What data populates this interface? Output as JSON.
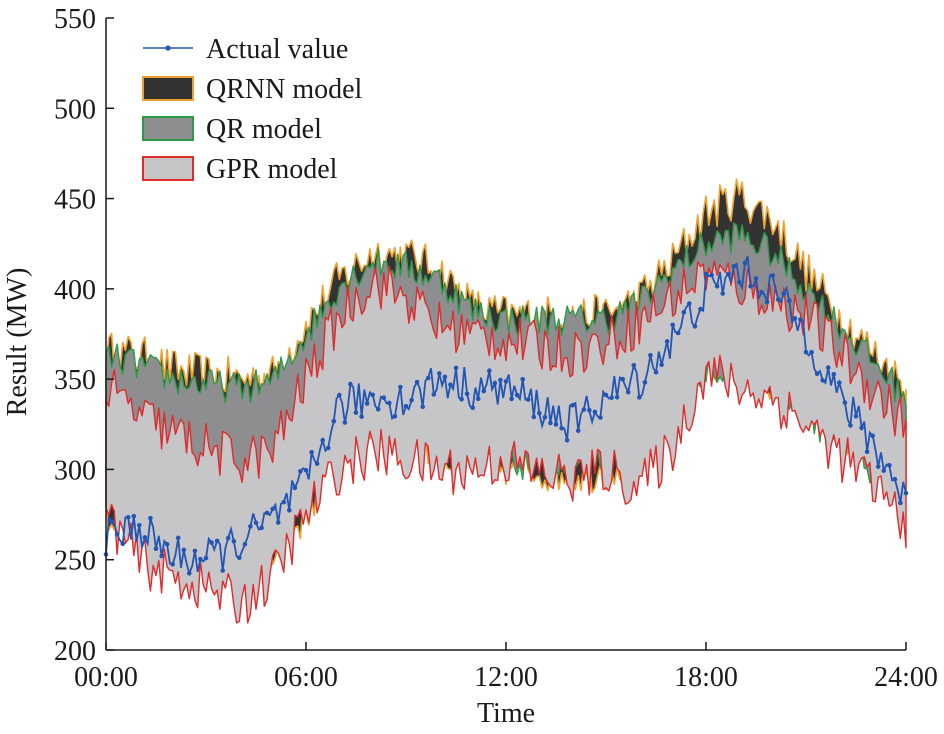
{
  "chart_data": {
    "type": "area",
    "xlabel": "Time",
    "ylabel": "Result (MW)",
    "x_ticks": [
      "00:00",
      "06:00",
      "12:00",
      "18:00",
      "24:00"
    ],
    "x_range_hours": [
      0,
      24
    ],
    "y_ticks": [
      200,
      250,
      300,
      350,
      400,
      450,
      500,
      550
    ],
    "ylim": [
      200,
      550
    ],
    "legend_position": "top-left",
    "colors": {
      "actual": "#2355b5",
      "qrnn_fill": "#333333",
      "qrnn_edge": "#f0a030",
      "qr_fill": "#8e8e90",
      "qr_edge": "#2e9a48",
      "gpr_fill": "#c6c6c8",
      "gpr_edge": "#e02b2b"
    },
    "series": [
      {
        "name": "Actual value",
        "kind": "line-markers",
        "x_hours": [
          0,
          1,
          2,
          3,
          4,
          5,
          6,
          7,
          8,
          9,
          10,
          11,
          12,
          13,
          14,
          15,
          16,
          17,
          18,
          19,
          20,
          21,
          22,
          23,
          24
        ],
        "values": [
          262,
          268,
          252,
          250,
          260,
          272,
          292,
          335,
          340,
          338,
          350,
          345,
          345,
          335,
          325,
          340,
          350,
          372,
          398,
          410,
          400,
          375,
          340,
          315,
          283
        ]
      },
      {
        "name": "QRNN model",
        "kind": "band",
        "x_hours": [
          0,
          1,
          2,
          3,
          4,
          5,
          6,
          7,
          8,
          9,
          10,
          11,
          12,
          13,
          14,
          15,
          16,
          17,
          18,
          19,
          20,
          21,
          22,
          23,
          24
        ],
        "upper": [
          365,
          363,
          355,
          352,
          350,
          352,
          380,
          405,
          420,
          418,
          410,
          390,
          385,
          385,
          385,
          385,
          395,
          415,
          442,
          452,
          438,
          410,
          385,
          365,
          345
        ],
        "lower": [
          278,
          272,
          265,
          258,
          255,
          258,
          275,
          315,
          325,
          318,
          308,
          302,
          302,
          300,
          298,
          300,
          310,
          335,
          360,
          360,
          350,
          335,
          320,
          305,
          285
        ]
      },
      {
        "name": "QR model",
        "kind": "band",
        "x_hours": [
          0,
          1,
          2,
          3,
          4,
          5,
          6,
          7,
          8,
          9,
          10,
          11,
          12,
          13,
          14,
          15,
          16,
          17,
          18,
          19,
          20,
          21,
          22,
          23,
          24
        ],
        "upper": [
          362,
          358,
          350,
          347,
          345,
          348,
          375,
          402,
          415,
          412,
          405,
          388,
          383,
          383,
          383,
          383,
          392,
          410,
          425,
          430,
          420,
          400,
          380,
          360,
          340
        ],
        "lower": [
          290,
          292,
          285,
          275,
          280,
          285,
          300,
          330,
          345,
          345,
          320,
          305,
          303,
          303,
          302,
          305,
          315,
          335,
          355,
          358,
          348,
          330,
          315,
          300,
          285
        ]
      },
      {
        "name": "GPR model",
        "kind": "band",
        "x_hours": [
          0,
          1,
          2,
          3,
          4,
          5,
          6,
          7,
          8,
          9,
          10,
          11,
          12,
          13,
          14,
          15,
          16,
          17,
          18,
          19,
          20,
          21,
          22,
          23,
          24
        ],
        "upper": [
          345,
          330,
          320,
          312,
          305,
          310,
          350,
          385,
          405,
          395,
          380,
          375,
          372,
          368,
          365,
          370,
          382,
          395,
          410,
          402,
          395,
          385,
          365,
          345,
          325
        ],
        "lower": [
          275,
          250,
          240,
          235,
          225,
          240,
          275,
          300,
          310,
          305,
          300,
          300,
          305,
          298,
          295,
          300,
          290,
          312,
          355,
          345,
          340,
          325,
          308,
          292,
          270
        ]
      }
    ]
  }
}
